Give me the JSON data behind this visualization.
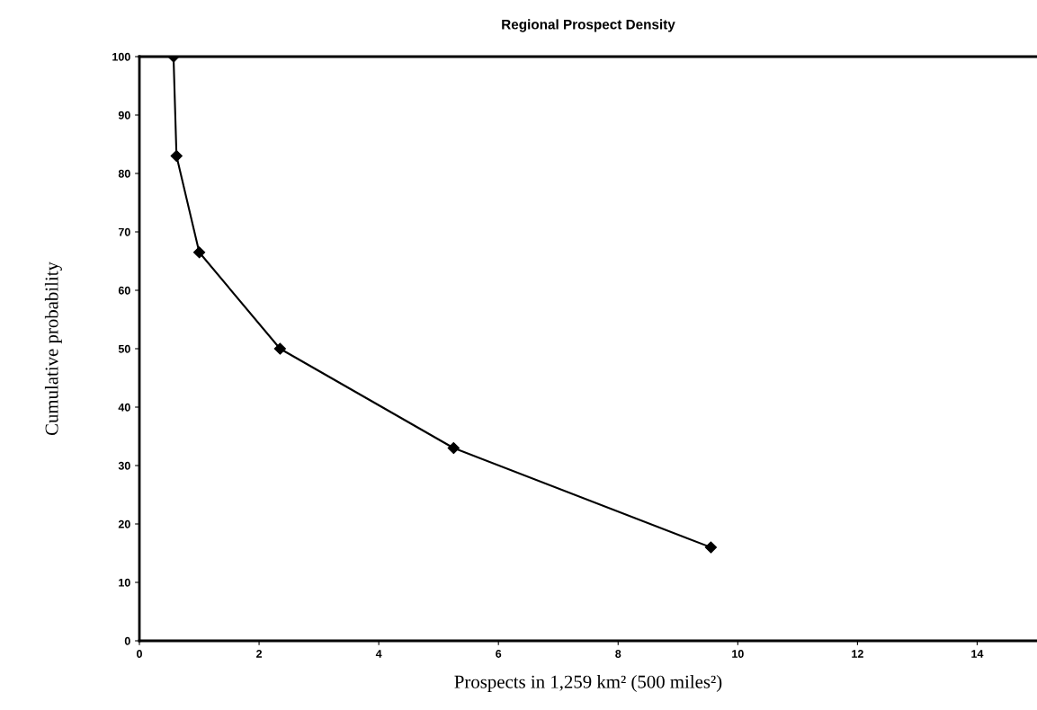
{
  "chart_data": {
    "type": "line",
    "title": "Regional Prospect Density",
    "xlabel": "Prospects in 1,259 km² (500 miles²)",
    "ylabel": "Cumulative probability",
    "x": [
      0.57,
      0.62,
      1.0,
      2.35,
      5.25,
      9.55
    ],
    "series": [
      {
        "color": "#000000",
        "values": [
          100,
          83,
          66.5,
          50,
          33,
          16
        ]
      }
    ],
    "xlim": [
      0,
      15
    ],
    "xticks": [
      0,
      2,
      4,
      6,
      8,
      10,
      12,
      14
    ],
    "ylim": [
      0,
      100
    ],
    "yticks": [
      0,
      10,
      20,
      30,
      40,
      50,
      60,
      70,
      80,
      90,
      100
    ],
    "grid": false,
    "legend": false,
    "marker": "diamond",
    "line_style": "solid"
  }
}
